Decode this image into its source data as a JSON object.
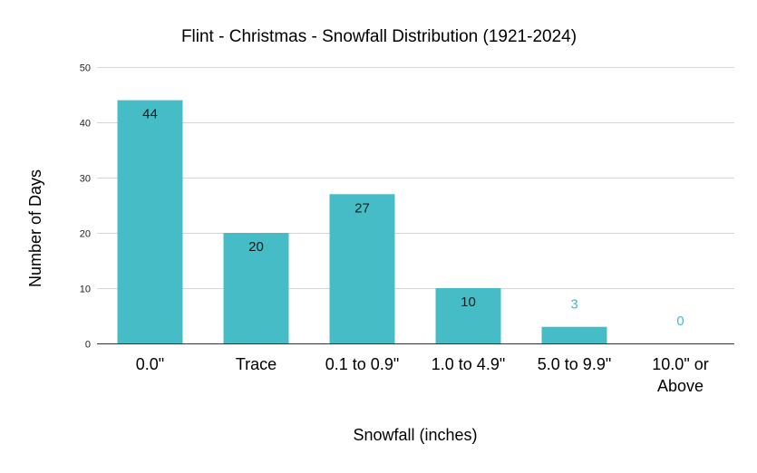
{
  "chart_data": {
    "type": "bar",
    "title": "Flint - Christmas - Snowfall Distribution (1921-2024)",
    "xlabel": "Snowfall (inches)",
    "ylabel": "Number of Days",
    "categories": [
      "0.0\"",
      "Trace",
      "0.1 to 0.9\"",
      "1.0 to 4.9\"",
      "5.0 to 9.9\"",
      "10.0\" or Above"
    ],
    "values": [
      44,
      20,
      27,
      10,
      3,
      0
    ],
    "ylim": [
      0,
      50
    ],
    "yticks": [
      0,
      10,
      20,
      30,
      40,
      50
    ],
    "grid": true,
    "legend": "none",
    "colors": {
      "bar": "#45bcc6",
      "label_inside": "#1a1a1a",
      "label_outside": "#45bcc6"
    }
  }
}
